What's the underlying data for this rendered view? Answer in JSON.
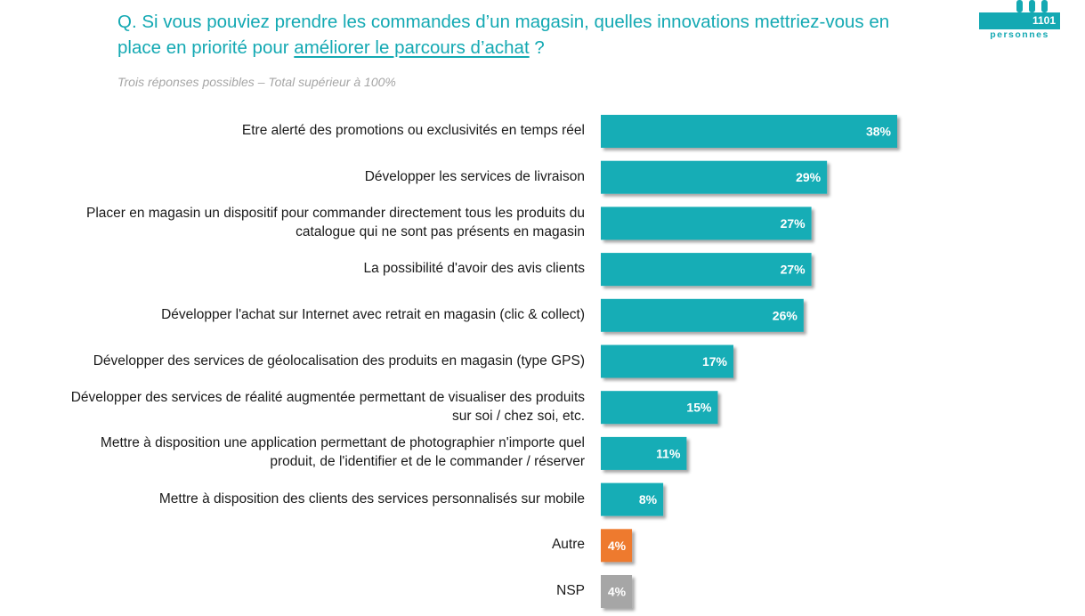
{
  "header": {
    "title_before": "Q. Si vous pouviez prendre les commandes d’un magasin, quelles innovations mettriez-vous en place en priorité pour ",
    "title_emphasis": "améliorer le parcours d’achat",
    "title_after": " ?",
    "subtitle": "Trois réponses possibles – Total supérieur à 100%"
  },
  "badge": {
    "count": "1101",
    "label": "personnes"
  },
  "colors": {
    "accent": "#14a9b3",
    "bar_main": "#14adb6",
    "bar_other": "#ee7a2f",
    "bar_nsp": "#a6a6a6"
  },
  "chart_data": {
    "type": "bar",
    "orientation": "horizontal",
    "categories": [
      "Etre alerté des promotions ou exclusivités en temps réel",
      "Développer les services de livraison",
      "Placer en magasin un dispositif pour commander directement tous les produits du catalogue qui ne sont pas présents en magasin",
      "La possibilité d'avoir des avis clients",
      "Développer l'achat sur Internet avec retrait en magasin (clic & collect)",
      "Développer des services de géolocalisation des produits en magasin (type GPS)",
      "Développer des services de réalité augmentée permettant de visualiser des produits sur soi / chez soi, etc.",
      "Mettre à disposition une application permettant de photographier n'importe quel produit, de l'identifier et de le commander / réserver",
      "Mettre à disposition des clients des services personnalisés sur mobile",
      "Autre",
      "NSP"
    ],
    "values": [
      38,
      29,
      27,
      27,
      26,
      17,
      15,
      11,
      8,
      4,
      4
    ],
    "value_labels": [
      "38%",
      "29%",
      "27%",
      "27%",
      "26%",
      "17%",
      "15%",
      "11%",
      "8%",
      "4%",
      "4%"
    ],
    "bar_colors": [
      "#14adb6",
      "#14adb6",
      "#14adb6",
      "#14adb6",
      "#14adb6",
      "#14adb6",
      "#14adb6",
      "#14adb6",
      "#14adb6",
      "#ee7a2f",
      "#a6a6a6"
    ],
    "xlim": [
      0,
      100
    ],
    "grid": false,
    "legend": "none"
  }
}
